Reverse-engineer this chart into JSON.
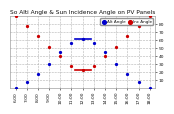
{
  "title": "So Alti Angle & Sun Incidence Angle on PV Panels",
  "legend_blue": "Alt Angle",
  "legend_red": "Inc Angle",
  "bg_color": "#ffffff",
  "plot_bg_color": "#ffffff",
  "grid_color": "#aaaaaa",
  "blue_color": "#0000cc",
  "red_color": "#cc0000",
  "title_color": "#111111",
  "tick_color": "#111111",
  "x_labels": [
    "6:00",
    "7:00",
    "8:00",
    "9:00",
    "10:00",
    "11:00",
    "12:00",
    "13:00",
    "14:00",
    "15:00",
    "16:00",
    "17:00",
    "18:00"
  ],
  "x_values": [
    6,
    7,
    8,
    9,
    10,
    11,
    12,
    13,
    14,
    15,
    16,
    17,
    18
  ],
  "sun_alt": [
    0,
    8,
    18,
    30,
    45,
    57,
    62,
    57,
    45,
    30,
    18,
    8,
    0
  ],
  "sun_inc": [
    90,
    78,
    65,
    52,
    40,
    28,
    22,
    28,
    40,
    52,
    65,
    78,
    90
  ],
  "ylim": [
    0,
    90
  ],
  "xlim": [
    5.5,
    18.5
  ],
  "yticks": [
    10,
    20,
    30,
    40,
    50,
    60,
    70,
    80
  ],
  "title_fontsize": 4.2,
  "tick_fontsize": 3.2,
  "legend_fontsize": 3.0,
  "marker_size": 1.8
}
